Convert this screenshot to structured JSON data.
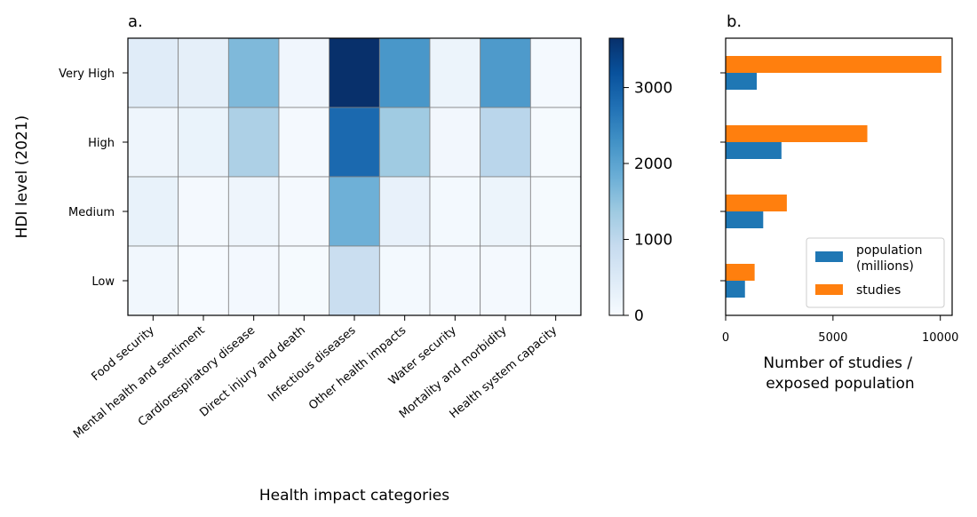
{
  "chart_data": [
    {
      "type": "heatmap",
      "panel_label": "a.",
      "xlabel": "Health impact categories",
      "ylabel": "HDI level (2021)",
      "x_categories": [
        "Food security",
        "Mental health and sentiment",
        "Cardiorespiratory disease",
        "Direct injury and death",
        "Infectious diseases",
        "Other health impacts",
        "Water security",
        "Mortality and morbidity",
        "Health system capacity"
      ],
      "y_categories": [
        "Very High",
        "High",
        "Medium",
        "Low"
      ],
      "values": [
        [
          420,
          330,
          1650,
          130,
          3650,
          2200,
          200,
          2150,
          60
        ],
        [
          160,
          230,
          1200,
          60,
          2850,
          1350,
          100,
          1050,
          40
        ],
        [
          270,
          50,
          160,
          60,
          1800,
          280,
          70,
          200,
          40
        ],
        [
          110,
          20,
          80,
          40,
          830,
          70,
          60,
          60,
          40
        ]
      ],
      "colorbar": {
        "min": 0,
        "max": 3650,
        "ticks": [
          0,
          1000,
          2000,
          3000
        ],
        "colormap": "Blues"
      },
      "grid": true
    },
    {
      "type": "bar",
      "orientation": "horizontal",
      "panel_label": "b.",
      "xlabel": "Number of studies /\nexposed population",
      "categories": [
        "Very High",
        "High",
        "Medium",
        "Low"
      ],
      "series": [
        {
          "name": "population\n(millions)",
          "color": "#1f77b4",
          "values": [
            1450,
            2600,
            1750,
            900
          ]
        },
        {
          "name": "studies",
          "color": "#ff7f0e",
          "values": [
            10050,
            6600,
            2850,
            1350
          ]
        }
      ],
      "xlim": [
        0,
        10550
      ],
      "xticks": [
        0,
        5000,
        10000
      ],
      "legend_position": "lower-right",
      "grid": false
    }
  ]
}
